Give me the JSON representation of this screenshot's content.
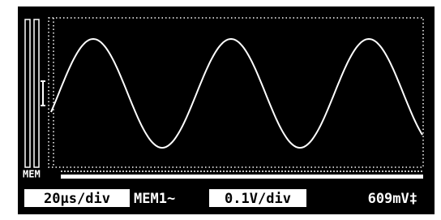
{
  "screen": {
    "mem_label": "MEM",
    "timebase": "20μs/div",
    "memory": "MEM1~",
    "volts": "0.1V/div",
    "reading": "609mV‡"
  }
}
